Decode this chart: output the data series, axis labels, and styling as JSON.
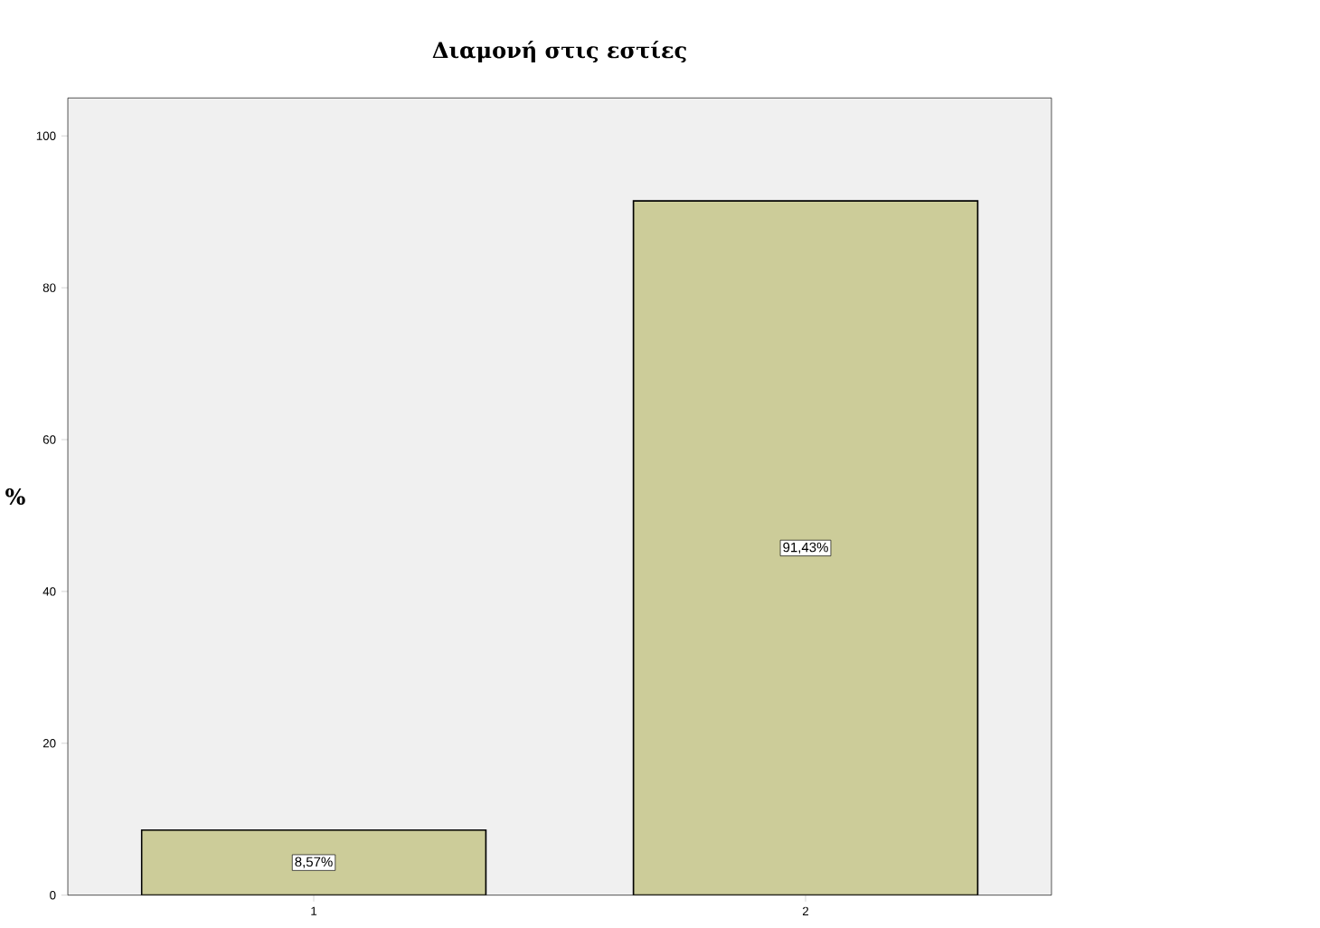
{
  "chart_data": {
    "type": "bar",
    "title": "Διαμονή στις εστίες",
    "ylabel": "%",
    "categories": [
      "1",
      "2"
    ],
    "values": [
      8.57,
      91.43
    ],
    "value_labels": [
      "8,57%",
      "91,43%"
    ],
    "color": "#cccc99",
    "ylim": [
      0,
      105
    ],
    "yticks": [
      0,
      20,
      40,
      60,
      80,
      100
    ]
  }
}
